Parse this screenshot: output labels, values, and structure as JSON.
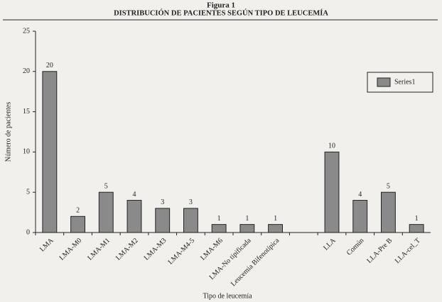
{
  "chart_data": {
    "type": "bar",
    "title": "Figura 1",
    "subtitle": "DISTRIBUCIÓN DE PACIENTES SEGÚN TIPO DE LEUCEMÍA",
    "y_label": "Número de pacientes",
    "x_label": "Tipo de leucemía",
    "categories": [
      "LMA",
      "LMA-M0",
      "LMA-M1",
      "LMA-M2",
      "LMA-M3",
      "LMA-M4-5",
      "LMA-M6",
      "LMA-No tipificada",
      "Leucemia Bifenotípica",
      null,
      "LLA",
      "Común",
      "LLA-Pre B",
      "LLA-cel_T"
    ],
    "series": [
      {
        "name": "Series1",
        "color": "#8a8a8a",
        "values": [
          20,
          2,
          5,
          4,
          3,
          3,
          1,
          1,
          1,
          null,
          10,
          4,
          5,
          1
        ]
      }
    ],
    "ylim": [
      0,
      25
    ],
    "yticks": [
      0,
      5,
      10,
      15,
      20,
      25
    ],
    "legend": "right"
  }
}
